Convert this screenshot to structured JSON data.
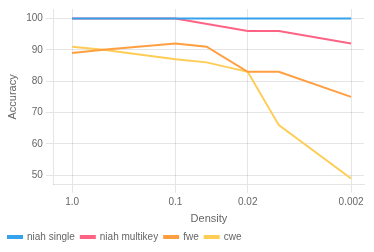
{
  "chart_data": {
    "type": "line",
    "xlabel": "Density",
    "ylabel": "Accuracy",
    "log": "x",
    "xlim": [
      1.5,
      0.0015
    ],
    "xticks": [
      {
        "value": 1.0,
        "label": "1.0"
      },
      0.1,
      0.02,
      0.002
    ],
    "ylim": [
      47,
      103
    ],
    "yticks": [
      50,
      60,
      70,
      80,
      90,
      100
    ],
    "grid": true,
    "legend": "lower left",
    "series": [
      {
        "name": "niah single",
        "x": [
          1.0,
          0.1,
          0.02,
          0.01,
          0.002
        ],
        "values": [
          100,
          100,
          100,
          100,
          100
        ]
      },
      {
        "name": "niah multikey",
        "x": [
          1.0,
          0.1,
          0.02,
          0.01,
          0.002
        ],
        "values": [
          100,
          100,
          96,
          96,
          92
        ]
      },
      {
        "name": "fwe",
        "x": [
          1.0,
          0.5,
          0.1,
          0.05,
          0.02,
          0.01,
          0.002
        ],
        "values": [
          89,
          90,
          92,
          91,
          83,
          83,
          75
        ]
      },
      {
        "name": "cwe",
        "x": [
          1.0,
          0.5,
          0.1,
          0.05,
          0.02,
          0.01,
          0.002
        ],
        "values": [
          91,
          90,
          87,
          86,
          83,
          66,
          49
        ]
      }
    ]
  }
}
